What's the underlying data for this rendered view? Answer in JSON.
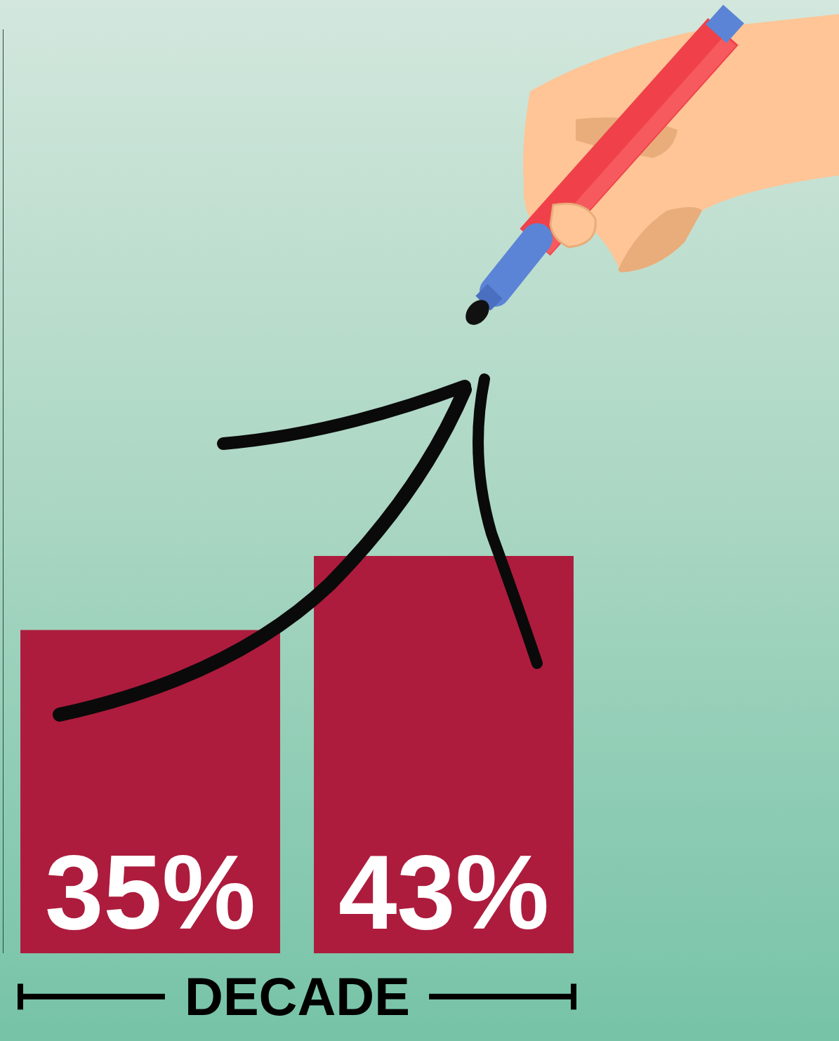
{
  "chart_data": {
    "type": "bar",
    "categories": [
      null,
      null
    ],
    "values": [
      35,
      43
    ],
    "value_labels": [
      "35%",
      "43%"
    ],
    "data_labels": true,
    "color": "#ad1c3d",
    "ylim": [
      0,
      100
    ],
    "tick_labels": false,
    "grid": false,
    "xlabel": "DECADE"
  }
}
